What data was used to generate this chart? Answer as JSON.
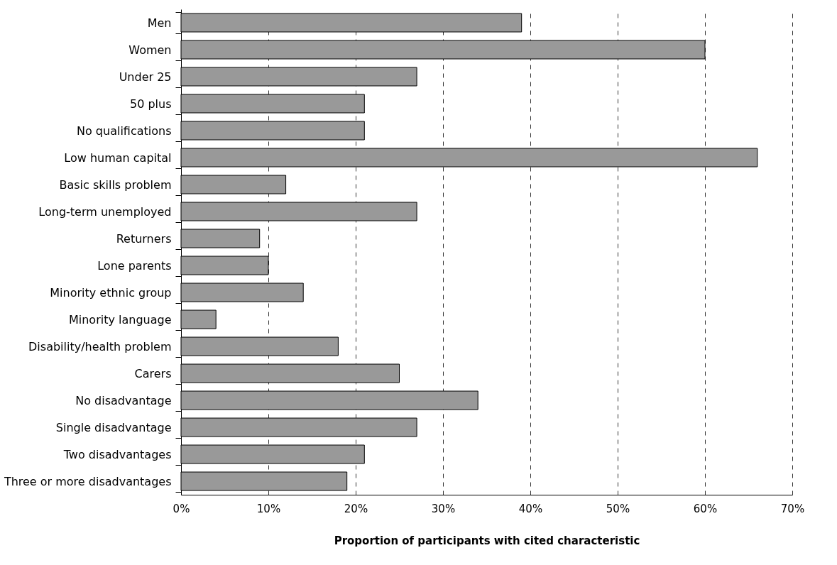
{
  "chart_data": {
    "type": "bar",
    "orientation": "horizontal",
    "xlabel": "Proportion of participants with cited characteristic",
    "categories": [
      "Men",
      "Women",
      "Under 25",
      "50 plus",
      "No qualifications",
      "Low human capital",
      "Basic skills problem",
      "Long-term unemployed",
      "Returners",
      "Lone parents",
      "Minority ethnic group",
      "Minority language",
      "Disability/health problem",
      "Carers",
      "No disadvantage",
      "Single disadvantage",
      "Two disadvantages",
      "Three or more disadvantages"
    ],
    "values": [
      39,
      60,
      27,
      21,
      21,
      66,
      12,
      27,
      9,
      10,
      14,
      4,
      18,
      25,
      34,
      27,
      21,
      19
    ],
    "color": "#999999",
    "xlim": [
      0,
      70
    ],
    "xticks": [
      {
        "value": 0,
        "label": "0%"
      },
      {
        "value": 10,
        "label": "10%"
      },
      {
        "value": 20,
        "label": "20%"
      },
      {
        "value": 30,
        "label": "30%"
      },
      {
        "value": 40,
        "label": "40%"
      },
      {
        "value": 50,
        "label": "50%"
      },
      {
        "value": 60,
        "label": "60%"
      },
      {
        "value": 70,
        "label": "70%"
      }
    ],
    "grid": "x"
  }
}
